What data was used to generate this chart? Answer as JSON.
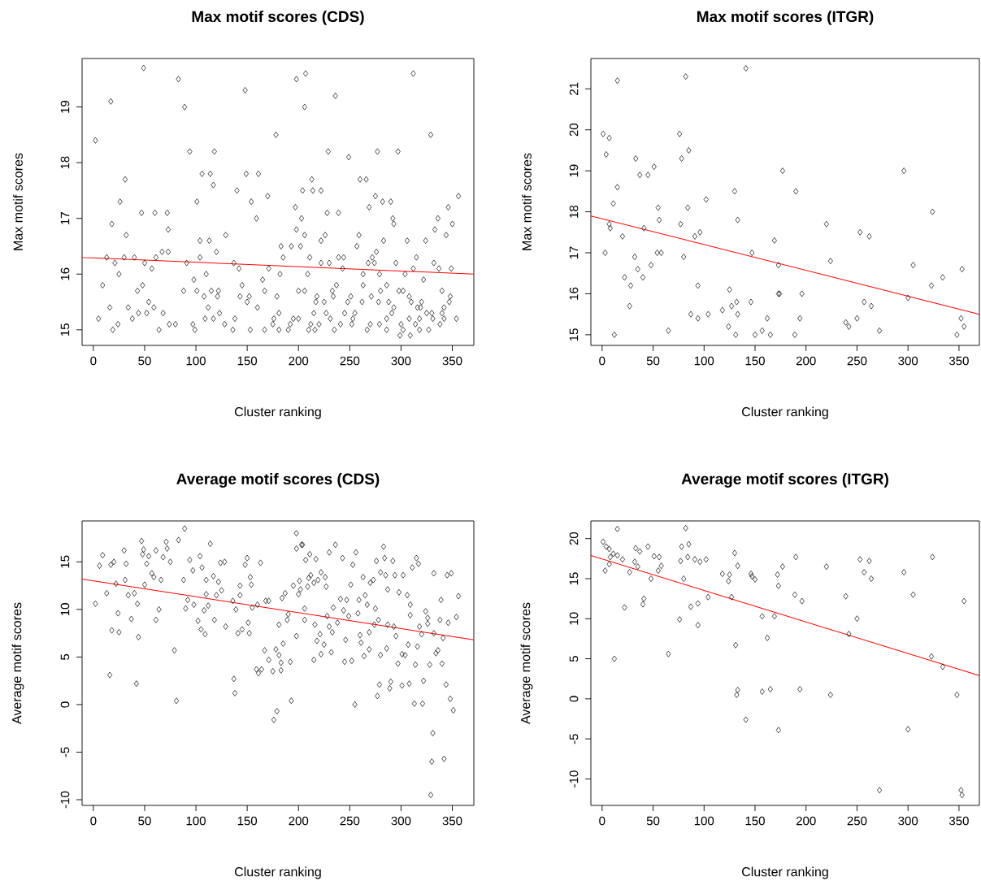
{
  "chart_data": [
    {
      "type": "scatter",
      "title": "Max motif scores (CDS)",
      "xlabel": "Cluster ranking",
      "ylabel": "Max motif scores",
      "xlim": [
        -11,
        371
      ],
      "ylim": [
        14.72,
        19.87
      ],
      "xticks": [
        0,
        50,
        100,
        150,
        200,
        250,
        300,
        350
      ],
      "yticks": [
        15,
        16,
        17,
        18,
        19
      ],
      "series": [
        {
          "type": "scatter",
          "color": "#000000",
          "marker": "diamond",
          "x": [
            2,
            17,
            49,
            83,
            89,
            94,
            118,
            148,
            178,
            198,
            207,
            206,
            236,
            249,
            277,
            297,
            312,
            329,
            31,
            26,
            18,
            32,
            47,
            60,
            72,
            73,
            101,
            106,
            114,
            117,
            140,
            149,
            161,
            154,
            159,
            129,
            170,
            197,
            204,
            213,
            214,
            222,
            229,
            228,
            239,
            203,
            198,
            206,
            260,
            266,
            275,
            269,
            282,
            290,
            292,
            293,
            259,
            257,
            283,
            306,
            324,
            336,
            346,
            356,
            350,
            344,
            333,
            13,
            30,
            40,
            61,
            67,
            73,
            104,
            113,
            120,
            91,
            104,
            137,
            183,
            193,
            202,
            185,
            211,
            226,
            222,
            239,
            244,
            272,
            276,
            315,
            295,
            21,
            50,
            57,
            25,
            142,
            171,
            182,
            209,
            222,
            230,
            243,
            263,
            279,
            304,
            312,
            332,
            337,
            349,
            268,
            274,
            322,
            9,
            48,
            43,
            16,
            34,
            54,
            59,
            5,
            24,
            19,
            38,
            44,
            52,
            68,
            64,
            74,
            80,
            97,
            99,
            88,
            98,
            101,
            108,
            110,
            115,
            121,
            122,
            112,
            109,
            117,
            123,
            128,
            136,
            138,
            145,
            143,
            150,
            152,
            160,
            153,
            165,
            167,
            167,
            175,
            176,
            179,
            181,
            181,
            190,
            192,
            195,
            200,
            200,
            206,
            210,
            212,
            215,
            217,
            218,
            220,
            216,
            225,
            227,
            231,
            233,
            234,
            237,
            235,
            241,
            245,
            248,
            251,
            252,
            253,
            255,
            262,
            263,
            267,
            270,
            271,
            278,
            279,
            280,
            286,
            286,
            286,
            288,
            291,
            293,
            298,
            300,
            299,
            302,
            302,
            308,
            310,
            308,
            309,
            314,
            318,
            316,
            320,
            319,
            318,
            325,
            327,
            330,
            331,
            338,
            340,
            342,
            340,
            348,
            347,
            342,
            354
          ],
          "values": [
            18.4,
            19.1,
            19.7,
            19.5,
            19.0,
            18.2,
            18.2,
            19.3,
            18.5,
            19.5,
            19.6,
            19.0,
            19.2,
            18.1,
            18.2,
            18.2,
            19.6,
            18.5,
            17.7,
            17.3,
            16.9,
            16.7,
            17.1,
            17.1,
            17.1,
            16.8,
            17.3,
            17.8,
            17.8,
            17.6,
            17.5,
            17.8,
            17.8,
            17.3,
            17.0,
            16.7,
            17.4,
            17.2,
            17.5,
            17.7,
            17.5,
            17.5,
            18.2,
            17.1,
            17.1,
            17.0,
            16.8,
            16.7,
            17.7,
            17.7,
            17.4,
            17.2,
            17.3,
            17.3,
            17.0,
            16.9,
            16.7,
            16.5,
            16.6,
            16.6,
            16.6,
            17.0,
            17.2,
            17.4,
            16.9,
            16.7,
            16.8,
            16.3,
            16.3,
            16.3,
            16.3,
            16.4,
            16.4,
            16.6,
            16.6,
            16.4,
            16.2,
            16.3,
            16.2,
            16.5,
            16.5,
            16.5,
            16.3,
            16.3,
            16.7,
            16.6,
            16.3,
            16.3,
            16.3,
            16.4,
            16.3,
            16.2,
            16.2,
            16.2,
            16.1,
            16.0,
            16.1,
            16.1,
            16.0,
            16.0,
            16.2,
            16.2,
            16.1,
            16.0,
            16.0,
            16.0,
            16.1,
            16.2,
            16.1,
            16.1,
            16.2,
            16.2,
            15.9,
            15.8,
            15.8,
            15.7,
            15.4,
            15.4,
            15.5,
            15.4,
            15.2,
            15.1,
            15.0,
            15.2,
            15.3,
            15.3,
            15.3,
            15.0,
            15.1,
            15.1,
            15.1,
            15.0,
            15.7,
            15.9,
            15.7,
            15.6,
            16.0,
            15.7,
            15.6,
            15.7,
            15.4,
            15.2,
            15.2,
            15.3,
            15.1,
            15.0,
            15.2,
            15.8,
            15.6,
            15.5,
            15.6,
            15.4,
            15.0,
            15.9,
            15.7,
            15.0,
            15.1,
            15.2,
            15.6,
            15.3,
            15.0,
            15.0,
            15.1,
            15.2,
            15.2,
            15.7,
            15.7,
            15.0,
            15.1,
            15.3,
            15.5,
            15.6,
            15.1,
            15.0,
            15.5,
            15.3,
            15.2,
            15.7,
            15.6,
            15.8,
            15.0,
            15.1,
            15.3,
            15.5,
            15.6,
            15.1,
            15.2,
            15.3,
            15.5,
            15.8,
            15.0,
            15.1,
            15.6,
            15.5,
            15.1,
            15.7,
            15.0,
            15.2,
            15.8,
            15.5,
            15.3,
            15.4,
            15.7,
            15.1,
            14.9,
            15.0,
            15.7,
            15.6,
            15.5,
            15.2,
            14.9,
            15.1,
            15.2,
            15.4,
            15.5,
            15.4,
            15.0,
            15.3,
            15.0,
            15.3,
            15.2,
            15.1,
            15.3,
            15.4,
            15.7,
            15.6,
            15.5,
            15.2,
            15.2
          ]
        },
        {
          "type": "line",
          "color": "#ff0000",
          "x": [
            -11,
            371
          ],
          "marker": "none",
          "values": [
            16.3,
            16.0
          ]
        }
      ]
    },
    {
      "type": "scatter",
      "title": "Max motif scores (ITGR)",
      "xlabel": "Cluster ranking",
      "ylabel": "Max motif scores",
      "xlim": [
        -11,
        370
      ],
      "ylim": [
        14.74,
        21.74
      ],
      "xticks": [
        0,
        50,
        100,
        150,
        200,
        250,
        300,
        350
      ],
      "yticks": [
        15,
        16,
        17,
        18,
        19,
        20,
        21
      ],
      "series": [
        {
          "type": "scatter",
          "color": "#000000",
          "marker": "diamond",
          "x": [
            1,
            7,
            4,
            15,
            82,
            141,
            76,
            78,
            85,
            33,
            37,
            45,
            51,
            15,
            11,
            55,
            56,
            84,
            102,
            130,
            133,
            177,
            190,
            296,
            324,
            220,
            7,
            8,
            41,
            20,
            77,
            91,
            96,
            169,
            253,
            262,
            3,
            54,
            58,
            32,
            80,
            147,
            35,
            48,
            22,
            40,
            28,
            94,
            173,
            224,
            305,
            353,
            323,
            334,
            300,
            27,
            12,
            65,
            87,
            94,
            104,
            118,
            125,
            127,
            132,
            133,
            124,
            131,
            146,
            150,
            157,
            162,
            165,
            173,
            174,
            196,
            194,
            189,
            239,
            242,
            250,
            257,
            264,
            272,
            352,
            355,
            348
          ],
          "values": [
            19.9,
            19.8,
            19.4,
            21.2,
            21.3,
            21.5,
            19.9,
            19.3,
            19.5,
            19.3,
            18.9,
            18.9,
            19.1,
            18.6,
            18.2,
            18.1,
            17.8,
            18.1,
            18.3,
            18.5,
            17.8,
            19.0,
            18.5,
            19.0,
            18.0,
            17.7,
            17.7,
            17.6,
            17.6,
            17.4,
            17.7,
            17.4,
            17.5,
            17.3,
            17.5,
            17.4,
            17.0,
            17.0,
            17.0,
            16.9,
            16.9,
            17.0,
            16.6,
            16.7,
            16.4,
            16.4,
            16.2,
            16.2,
            16.7,
            16.8,
            16.7,
            16.6,
            16.2,
            16.4,
            15.9,
            15.7,
            15.0,
            15.1,
            15.5,
            15.4,
            15.5,
            15.6,
            16.1,
            15.7,
            15.8,
            15.5,
            15.2,
            15.0,
            15.8,
            15.0,
            15.1,
            15.4,
            15.0,
            16.0,
            16.0,
            16.0,
            15.4,
            15.0,
            15.3,
            15.2,
            15.4,
            15.8,
            15.7,
            15.1,
            15.4,
            15.2,
            15.0
          ]
        },
        {
          "type": "line",
          "color": "#ff0000",
          "x": [
            -11,
            370
          ],
          "marker": "none",
          "values": [
            17.9,
            15.5
          ]
        }
      ]
    },
    {
      "type": "scatter",
      "title": "Average motif scores (CDS)",
      "xlabel": "Cluster ranking",
      "ylabel": "Average motif scores",
      "xlim": [
        -11,
        371
      ],
      "ylim": [
        -10.6,
        19.3
      ],
      "xticks": [
        0,
        50,
        100,
        150,
        200,
        250,
        300,
        350
      ],
      "yticks": [
        -10,
        -5,
        0,
        5,
        10,
        15
      ],
      "series": [
        {
          "type": "scatter",
          "color": "#000000",
          "marker": "diamond",
          "x": [
            2,
            6,
            9,
            13,
            17,
            20,
            22,
            24,
            16,
            18,
            25,
            30,
            32,
            31,
            34,
            37,
            40,
            43,
            44,
            42,
            47,
            49,
            48,
            54,
            52,
            50,
            57,
            59,
            66,
            61,
            68,
            71,
            72,
            75,
            83,
            89,
            64,
            61,
            79,
            81,
            88,
            92,
            90,
            94,
            97,
            104,
            106,
            98,
            102,
            105,
            109,
            108,
            110,
            110,
            112,
            114,
            117,
            118,
            120,
            122,
            125,
            124,
            128,
            129,
            136,
            139,
            141,
            145,
            137,
            138,
            143,
            143,
            148,
            150,
            153,
            154,
            152,
            151,
            155,
            163,
            160,
            168,
            171,
            167,
            171,
            159,
            161,
            164,
            175,
            178,
            181,
            183,
            183,
            185,
            192,
            193,
            179,
            176,
            181,
            184,
            187,
            189,
            190,
            195,
            198,
            198,
            198,
            203,
            204,
            201,
            202,
            200,
            206,
            206,
            209,
            211,
            207,
            217,
            212,
            210,
            215,
            219,
            222,
            226,
            227,
            216,
            215,
            221,
            218,
            222,
            225,
            228,
            230,
            236,
            234,
            238,
            230,
            233,
            232,
            243,
            241,
            247,
            244,
            249,
            251,
            253,
            256,
            246,
            245,
            252,
            255,
            258,
            259,
            260,
            261,
            263,
            264,
            265,
            267,
            269,
            269,
            270,
            273,
            275,
            276,
            278,
            274,
            280,
            279,
            277,
            280,
            283,
            285,
            284,
            286,
            287,
            287,
            293,
            292,
            294,
            295,
            298,
            290,
            289,
            297,
            301,
            304,
            302,
            306,
            307,
            301,
            308,
            309,
            309,
            311,
            315,
            317,
            313,
            314,
            316,
            318,
            320,
            321,
            322,
            324,
            326,
            326,
            328,
            332,
            332,
            334,
            336,
            338,
            339,
            341,
            340,
            345,
            349,
            346,
            344,
            348,
            351,
            354,
            356,
            331,
            330,
            342,
            329
          ],
          "values": [
            10.6,
            14.6,
            15.7,
            11.7,
            14.7,
            15.0,
            12.7,
            9.6,
            3.1,
            7.8,
            7.6,
            16.2,
            14.8,
            13.1,
            11.5,
            9.0,
            11.7,
            10.6,
            7.1,
            2.2,
            17.2,
            16.3,
            15.8,
            15.6,
            14.8,
            12.6,
            13.8,
            13.4,
            13.1,
            16.2,
            15.5,
            17.1,
            16.4,
            15.0,
            17.3,
            18.5,
            10.0,
            8.9,
            5.7,
            0.4,
            13.1,
            11.0,
            10.1,
            15.2,
            14.1,
            15.6,
            14.4,
            10.5,
            8.8,
            7.9,
            7.4,
            9.9,
            13.1,
            11.6,
            10.4,
            16.9,
            13.5,
            8.9,
            11.5,
            12.9,
            12.0,
            14.9,
            15.0,
            8.2,
            10.9,
            10.0,
            7.5,
            7.9,
            2.7,
            1.2,
            12.5,
            11.5,
            14.7,
            15.4,
            13.4,
            12.6,
            7.5,
            8.6,
            10.2,
            14.9,
            10.5,
            10.9,
            10.9,
            5.7,
            4.7,
            3.7,
            3.3,
            3.7,
            3.5,
            5.8,
            5.2,
            4.4,
            3.6,
            6.4,
            4.5,
            0.4,
            -0.7,
            -1.6,
            8.4,
            11.2,
            11.7,
            8.9,
            9.5,
            12.5,
            7.2,
            18.0,
            16.4,
            16.8,
            16.8,
            13.0,
            12.1,
            11.6,
            10.1,
            8.9,
            12.4,
            15.8,
            15.2,
            15.3,
            13.6,
            13.3,
            12.8,
            13.1,
            13.9,
            13.4,
            12.4,
            8.4,
            4.7,
            7.4,
            6.7,
            5.3,
            6.3,
            9.3,
            16.0,
            16.8,
            10.2,
            8.6,
            8.2,
            7.6,
            5.5,
            15.4,
            11.1,
            11.0,
            9.9,
            9.3,
            12.6,
            14.7,
            16.0,
            6.8,
            4.5,
            4.6,
            0.0,
            9.6,
            11.0,
            7.3,
            6.5,
            13.4,
            5.1,
            11.5,
            10.5,
            5.8,
            7.6,
            12.8,
            13.1,
            10.1,
            15.1,
            8.9,
            8.4,
            5.2,
            2.1,
            0.9,
            13.9,
            16.6,
            13.6,
            15.4,
            5.9,
            12.1,
            8.4,
            8.2,
            15.1,
            13.6,
            7.2,
            11.8,
            2.4,
            1.7,
            4.3,
            5.3,
            5.2,
            13.6,
            11.5,
            6.3,
            2.0,
            2.2,
            9.4,
            10.5,
            14.4,
            15.4,
            14.8,
            0.1,
            4.2,
            6.1,
            8.2,
            7.4,
            0.1,
            2.5,
            9.8,
            9.1,
            8.5,
            4.2,
            13.8,
            7.5,
            5.4,
            5.7,
            8.9,
            11.0,
            7.0,
            4.3,
            13.6,
            13.8,
            8.6,
            2.1,
            0.6,
            -0.6,
            9.2,
            11.4,
            -3.0,
            -6.0,
            -5.7,
            -9.5
          ]
        },
        {
          "type": "line",
          "color": "#ff0000",
          "x": [
            -11,
            371
          ],
          "marker": "none",
          "values": [
            13.2,
            6.8
          ]
        }
      ]
    },
    {
      "type": "scatter",
      "title": "Average motif scores (ITGR)",
      "xlabel": "Cluster ranking",
      "ylabel": "Average motif scores",
      "xlim": [
        -11,
        370
      ],
      "ylim": [
        -13.3,
        22.2
      ],
      "xticks": [
        0,
        50,
        100,
        150,
        200,
        250,
        300,
        350
      ],
      "yticks": [
        -10,
        -5,
        0,
        5,
        10,
        15,
        20
      ],
      "series": [
        {
          "type": "scatter",
          "color": "#000000",
          "marker": "diamond",
          "x": [
            1,
            15,
            82,
            4,
            7,
            11,
            8,
            15,
            20,
            7,
            3,
            12,
            33,
            37,
            45,
            32,
            35,
            27,
            51,
            56,
            58,
            55,
            48,
            41,
            40,
            22,
            65,
            78,
            85,
            77,
            84,
            91,
            96,
            102,
            80,
            76,
            87,
            94,
            94,
            104,
            130,
            133,
            118,
            125,
            124,
            127,
            146,
            147,
            150,
            131,
            133,
            132,
            141,
            157,
            162,
            157,
            165,
            169,
            172,
            177,
            173,
            173,
            190,
            189,
            196,
            194,
            220,
            224,
            239,
            242,
            250,
            253,
            262,
            257,
            264,
            272,
            296,
            305,
            300,
            324,
            323,
            334,
            348,
            355,
            352,
            353
          ],
          "values": [
            19.6,
            21.2,
            21.3,
            19.0,
            18.7,
            18.1,
            17.7,
            17.9,
            17.4,
            16.8,
            16.0,
            5.0,
            18.8,
            18.4,
            19.0,
            17.1,
            16.5,
            15.8,
            17.8,
            17.7,
            16.6,
            16.0,
            15.0,
            12.5,
            11.8,
            11.4,
            5.6,
            19.0,
            19.3,
            17.2,
            17.7,
            17.4,
            17.1,
            17.4,
            15.0,
            9.9,
            11.5,
            11.9,
            9.2,
            12.7,
            18.2,
            16.6,
            15.6,
            15.5,
            14.7,
            12.7,
            15.6,
            15.3,
            14.9,
            6.7,
            1.1,
            0.5,
            -2.6,
            10.3,
            7.6,
            0.9,
            1.2,
            10.3,
            15.5,
            16.5,
            14.1,
            -3.9,
            17.7,
            13.0,
            12.2,
            1.2,
            16.5,
            0.5,
            12.8,
            8.1,
            10.0,
            17.4,
            17.2,
            15.8,
            15.0,
            -11.4,
            15.8,
            13.0,
            -3.8,
            17.7,
            5.3,
            4.0,
            0.5,
            12.2,
            -11.4,
            -12.0
          ]
        },
        {
          "type": "line",
          "color": "#ff0000",
          "x": [
            -11,
            370
          ],
          "marker": "none",
          "values": [
            17.9,
            2.9
          ]
        }
      ]
    }
  ]
}
